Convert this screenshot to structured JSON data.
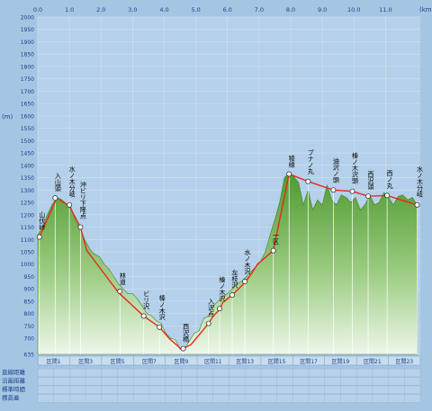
{
  "colors": {
    "background": "#a5c6e3",
    "terrain_top": "#55a035",
    "terrain_bottom": "#e6f3df",
    "route": "#e8281e",
    "grid": "#d9e8f4",
    "marker_line": "#ffffff"
  },
  "axes": {
    "x_unit": "(km)",
    "x_ticks": [
      "0.0",
      "1.0",
      "2.0",
      "3.0",
      "4.0",
      "5.0",
      "6.0",
      "7.0",
      "8.0",
      "9.0",
      "10.0",
      "11.0"
    ],
    "y_ticks": [
      "2000",
      "1950",
      "1900",
      "1850",
      "1800",
      "1750",
      "1700",
      "1650",
      "1600",
      "1550",
      "1500",
      "1450",
      "1400",
      "1350",
      "1300",
      "1250",
      "1200",
      "1150",
      "1100",
      "1050",
      "1000",
      "950",
      "900",
      "850",
      "800",
      "750",
      "700",
      "635"
    ],
    "y_top_label": "(m)"
  },
  "chart_data": {
    "type": "area",
    "x_unit": "km",
    "y_unit": "m",
    "xlim": [
      0,
      12.1
    ],
    "ylim": [
      635,
      2000
    ],
    "profile": {
      "x": [
        0,
        0.15,
        0.3,
        0.45,
        0.6,
        0.75,
        0.9,
        1.05,
        1.2,
        1.35,
        1.5,
        1.65,
        1.8,
        1.95,
        2.1,
        2.25,
        2.4,
        2.55,
        2.7,
        2.85,
        3.0,
        3.15,
        3.3,
        3.45,
        3.6,
        3.75,
        3.9,
        4.05,
        4.2,
        4.35,
        4.5,
        4.65,
        4.8,
        4.95,
        5.1,
        5.25,
        5.4,
        5.55,
        5.7,
        5.85,
        6.0,
        6.15,
        6.3,
        6.45,
        6.6,
        6.75,
        6.9,
        7.05,
        7.2,
        7.35,
        7.5,
        7.65,
        7.8,
        7.95,
        8.1,
        8.25,
        8.4,
        8.55,
        8.7,
        8.85,
        9.0,
        9.15,
        9.3,
        9.45,
        9.6,
        9.75,
        9.9,
        10.05,
        10.2,
        10.35,
        10.5,
        10.65,
        10.8,
        10.95,
        11.1,
        11.25,
        11.4,
        11.55,
        11.7,
        11.85,
        12.0
      ],
      "y": [
        1120,
        1150,
        1200,
        1240,
        1270,
        1262,
        1245,
        1230,
        1175,
        1140,
        1095,
        1060,
        1040,
        1030,
        1000,
        980,
        950,
        920,
        900,
        880,
        880,
        860,
        830,
        800,
        790,
        770,
        760,
        720,
        700,
        695,
        655,
        660,
        690,
        720,
        730,
        780,
        790,
        830,
        850,
        870,
        880,
        900,
        920,
        930,
        950,
        970,
        990,
        1010,
        1050,
        1120,
        1180,
        1250,
        1350,
        1370,
        1355,
        1330,
        1240,
        1300,
        1220,
        1260,
        1240,
        1320,
        1260,
        1240,
        1280,
        1270,
        1250,
        1270,
        1220,
        1240,
        1280,
        1240,
        1250,
        1290,
        1270,
        1240,
        1275,
        1280,
        1260,
        1270,
        1240
      ]
    },
    "route": {
      "x": [
        0.05,
        0.6,
        1.0,
        1.35,
        1.55,
        2.55,
        3.35,
        3.85,
        4.15,
        4.55,
        4.85,
        5.4,
        5.55,
        5.75,
        5.85,
        6.15,
        6.55,
        6.75,
        6.95,
        7.45,
        7.95,
        8.55,
        9.35,
        9.95,
        10.45,
        11.05,
        12.0
      ],
      "y": [
        1110,
        1268,
        1235,
        1150,
        1055,
        885,
        790,
        745,
        700,
        655,
        675,
        760,
        790,
        815,
        845,
        875,
        925,
        960,
        1000,
        1055,
        1365,
        1335,
        1300,
        1295,
        1275,
        1278,
        1240
      ]
    },
    "waypoints": [
      {
        "label": "山伏峠",
        "x": 0.05,
        "y": 1110
      },
      {
        "label": "入山頭",
        "x": 0.55,
        "y": 1268
      },
      {
        "label": "水ノ木分岐",
        "x": 1.0,
        "y": 1240
      },
      {
        "label": "沖ビリ下降点",
        "x": 1.35,
        "y": 1150
      },
      {
        "label": "林道",
        "x": 2.6,
        "y": 890
      },
      {
        "label": "ビリ沢",
        "x": 3.35,
        "y": 790
      },
      {
        "label": "榛ノ木沢",
        "x": 3.85,
        "y": 745
      },
      {
        "label": "西沢橋",
        "x": 4.6,
        "y": 658
      },
      {
        "label": "入沢点",
        "x": 5.4,
        "y": 760
      },
      {
        "label": "榛ノ木沢",
        "x": 5.75,
        "y": 820
      },
      {
        "label": "左枝沢",
        "x": 6.15,
        "y": 875
      },
      {
        "label": "水ノ木沢",
        "x": 6.55,
        "y": 930
      },
      {
        "label": "一区",
        "x": 7.45,
        "y": 1055
      },
      {
        "label": "稜線",
        "x": 7.95,
        "y": 1365
      },
      {
        "label": "ブナノ丸",
        "x": 8.55,
        "y": 1335
      },
      {
        "label": "油沢ノ頭",
        "x": 9.35,
        "y": 1300
      },
      {
        "label": "榛ノ木沢頭",
        "x": 9.95,
        "y": 1295
      },
      {
        "label": "西沢頭",
        "x": 10.45,
        "y": 1275
      },
      {
        "label": "西ノ丸",
        "x": 11.05,
        "y": 1278
      },
      {
        "label": "水ノ木分岐",
        "x": 12.0,
        "y": 1240
      }
    ],
    "sections": [
      "区間1",
      "区間3",
      "区間5",
      "区間7",
      "区間9",
      "区間11",
      "区間13",
      "区間15",
      "区間17",
      "区間19",
      "区間21",
      "区間23"
    ],
    "table_row_labels": [
      "直線距離",
      "沿面距離",
      "標準時間",
      "標高差"
    ]
  }
}
